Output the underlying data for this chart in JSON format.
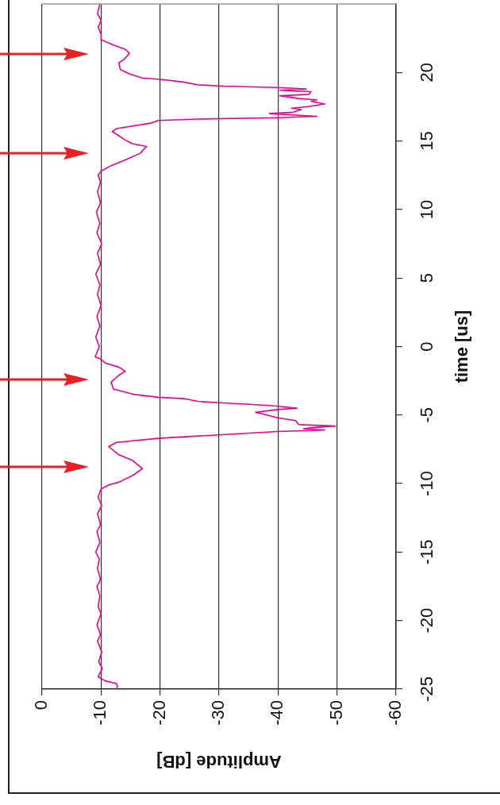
{
  "chart_data": {
    "type": "line",
    "orientation": "horizontal",
    "xlabel": "Amplitude [dB]",
    "ylabel": "time [us]",
    "xlim": [
      0,
      -60
    ],
    "xticks": [
      0,
      -10,
      -20,
      -30,
      -40,
      -50,
      -60
    ],
    "ylim": [
      -25,
      25
    ],
    "yticks": [
      -25,
      -20,
      -15,
      -10,
      -5,
      0,
      5,
      10,
      15,
      20
    ],
    "grid": "x",
    "legend": false,
    "marker": "none",
    "line_style": "solid",
    "series": [
      {
        "color": "#ec008c",
        "x": [
          -25,
          -24.8,
          -24.6,
          -24.4,
          -24.1,
          -23.5,
          -23,
          -22.3,
          -21.5,
          -21,
          -20.3,
          -19.5,
          -19,
          -18.2,
          -17.5,
          -17,
          -16.2,
          -15.5,
          -15,
          -14.3,
          -13.5,
          -13,
          -12.2,
          -11.6,
          -11,
          -10.6,
          -10.4,
          -10.1,
          -9.9,
          -9.4,
          -8.9,
          -8.3,
          -7.9,
          -7.3,
          -7,
          -6.7,
          -6.4,
          -6.2,
          -6.1,
          -6,
          -5.9,
          -5.8,
          -5.7,
          -5.4,
          -5.2,
          -4.9,
          -4.8,
          -4.6,
          -4.5,
          -4.4,
          -4.3,
          -4.2,
          -4.1,
          -4,
          -3.8,
          -3.7,
          -3.5,
          -3.1,
          -2.6,
          -2.1,
          -1.8,
          -1.5,
          -1.2,
          -0.9,
          -0.75,
          0,
          0.7,
          1.5,
          2.2,
          3,
          3.8,
          4.5,
          5.3,
          6,
          6.8,
          7.5,
          8.3,
          9,
          9.8,
          10.5,
          11.3,
          12,
          12.5,
          12.8,
          13.2,
          13.6,
          14.1,
          14.6,
          14.8,
          15.1,
          15.7,
          15.9,
          16.3,
          16.5,
          16.6,
          16.7,
          16.8,
          17,
          17.1,
          17.3,
          17.4,
          17.5,
          17.7,
          17.9,
          18,
          18.1,
          18.3,
          18.4,
          18.6,
          18.7,
          18.8,
          18.9,
          19,
          19.1,
          19.3,
          19.5,
          19.6,
          19.9,
          20.2,
          20.7,
          21,
          21.4,
          21.7,
          22,
          22.4,
          22.8,
          23.3,
          23.8,
          24.3,
          25
        ],
        "values": [
          -12.6,
          -12.8,
          -12.6,
          -10.7,
          -9.5,
          -10.2,
          -9.6,
          -10.1,
          -9.4,
          -9.9,
          -9.3,
          -10,
          -9.5,
          -9.8,
          -9.3,
          -9.9,
          -9.4,
          -9.7,
          -9.1,
          -9.8,
          -9.3,
          -9.9,
          -9.4,
          -10.1,
          -9.5,
          -9.8,
          -10,
          -11.3,
          -13,
          -15.4,
          -17,
          -15.3,
          -13,
          -11.3,
          -12.6,
          -19.7,
          -31.8,
          -39.9,
          -47.9,
          -44.3,
          -46.2,
          -49.7,
          -43.5,
          -43,
          -39.9,
          -37.2,
          -36.2,
          -39.9,
          -43.2,
          -41.2,
          -38.5,
          -34.5,
          -30,
          -26.4,
          -24,
          -19.7,
          -15.7,
          -12.1,
          -11.7,
          -13,
          -14.1,
          -13,
          -10.7,
          -9.9,
          -9,
          -9.7,
          -9.1,
          -9.8,
          -9.3,
          -10,
          -9.4,
          -9.8,
          -9.1,
          -9.9,
          -9.4,
          -10.1,
          -9.3,
          -9.8,
          -9.2,
          -9.9,
          -9.4,
          -9.9,
          -9.5,
          -10,
          -11.7,
          -14,
          -16.6,
          -17.7,
          -15.3,
          -14,
          -11.9,
          -12.6,
          -18.4,
          -19.7,
          -26.4,
          -39.9,
          -46.6,
          -38.5,
          -42.6,
          -43.9,
          -42.3,
          -44.8,
          -47.9,
          -45.6,
          -46.6,
          -43.5,
          -40.3,
          -45.2,
          -45.6,
          -40.3,
          -44.8,
          -39.9,
          -30.9,
          -26.4,
          -24,
          -20.1,
          -17,
          -14.8,
          -13.3,
          -13,
          -14,
          -14.8,
          -14.1,
          -12.1,
          -10,
          -10,
          -9.5,
          -10,
          -9.4,
          -9.8
        ]
      }
    ]
  }
}
